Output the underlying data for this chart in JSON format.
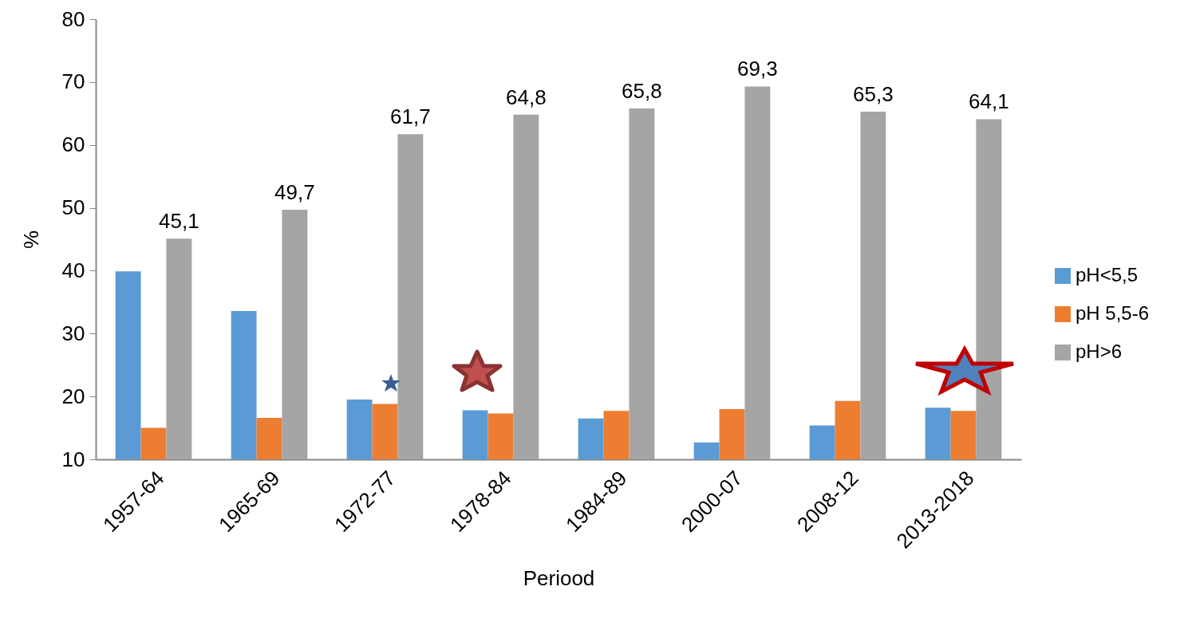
{
  "chart_data": {
    "type": "bar",
    "xlabel": "Periood",
    "ylabel": "%",
    "categories": [
      "1957-64",
      "1965-69",
      "1972-77",
      "1978-84",
      "1984-89",
      "2000-07",
      "2008-12",
      "2013-2018"
    ],
    "series": [
      {
        "name": "pH<5,5",
        "color": "#5b9bd5",
        "values": [
          39.9,
          33.6,
          19.5,
          17.8,
          16.5,
          12.7,
          15.4,
          18.2
        ]
      },
      {
        "name": "pH 5,5-6",
        "color": "#ed7d31",
        "values": [
          15.0,
          16.6,
          18.8,
          17.3,
          17.7,
          18.0,
          19.3,
          17.7
        ]
      },
      {
        "name": "pH>6",
        "color": "#a5a5a5",
        "values": [
          45.1,
          49.7,
          61.7,
          64.8,
          65.8,
          69.3,
          65.3,
          64.1
        ],
        "value_labels": [
          "45,1",
          "49,7",
          "61,7",
          "64,8",
          "65,8",
          "69,3",
          "65,3",
          "64,1"
        ]
      }
    ],
    "ylim": [
      10,
      80
    ],
    "yticks": [
      10,
      20,
      30,
      40,
      50,
      60,
      70,
      80
    ],
    "legend": "right"
  }
}
